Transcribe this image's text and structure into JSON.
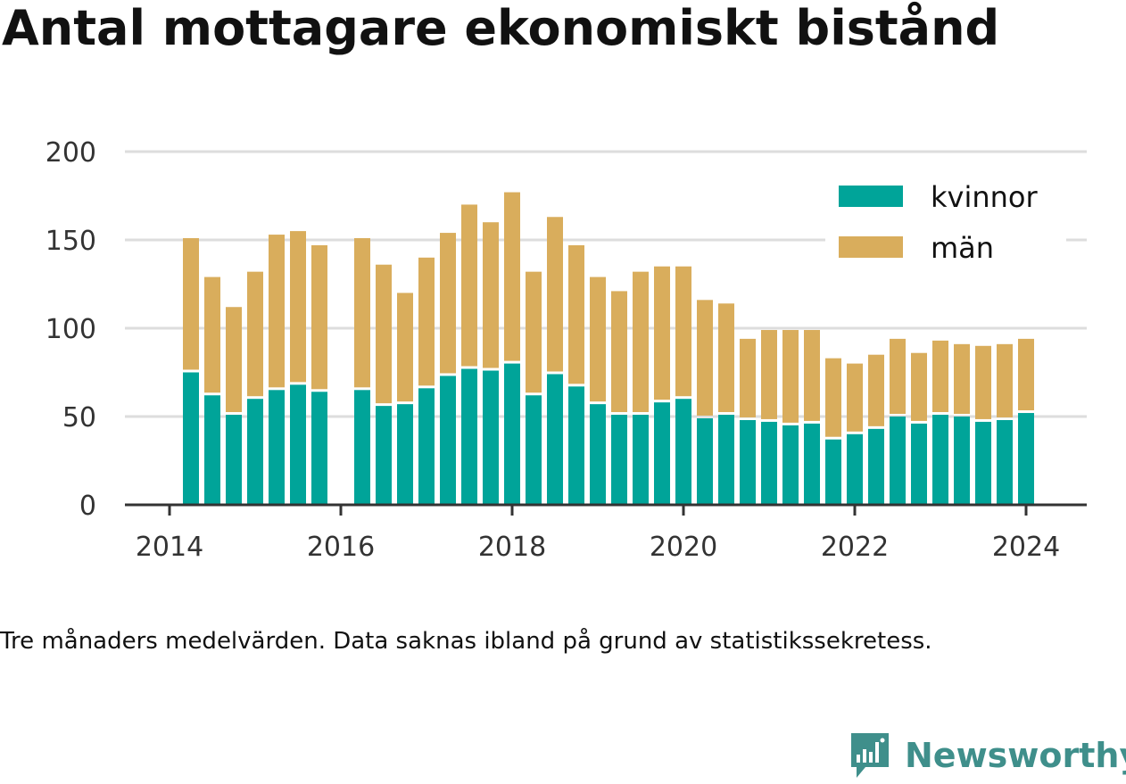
{
  "title": "Antal mottagare ekonomiskt bistånd",
  "note": "Tre månaders medelvärden. Data saknas ibland på grund av statistikssekretess.",
  "brand": "Newsworthy",
  "colors": {
    "kvinnor": "#00a499",
    "man": "#d9ad5c",
    "grid": "#dddddd",
    "axis": "#333333",
    "brand": "#3f8f8b"
  },
  "chart_data": {
    "type": "bar",
    "stacked": true,
    "xlabel": "",
    "ylabel": "",
    "ylim": [
      0,
      200
    ],
    "yticks": [
      0,
      50,
      100,
      150,
      200
    ],
    "xticks": [
      2014,
      2016,
      2018,
      2020,
      2022,
      2024
    ],
    "xlim": [
      2013.75,
      2024.3
    ],
    "legend": {
      "position": "top-right",
      "entries": [
        "kvinnor",
        "män"
      ]
    },
    "x": [
      2014.25,
      2014.5,
      2014.75,
      2015.0,
      2015.25,
      2015.5,
      2015.75,
      2016.25,
      2016.5,
      2016.75,
      2017.0,
      2017.25,
      2017.5,
      2017.75,
      2018.0,
      2018.25,
      2018.5,
      2018.75,
      2019.0,
      2019.25,
      2019.5,
      2019.75,
      2020.0,
      2020.25,
      2020.5,
      2020.75,
      2021.0,
      2021.25,
      2021.5,
      2021.75,
      2022.0,
      2022.25,
      2022.5,
      2022.75,
      2023.0,
      2023.25,
      2023.5,
      2023.75,
      2024.0
    ],
    "series": [
      {
        "name": "kvinnor",
        "values": [
          75,
          62,
          51,
          60,
          65,
          68,
          64,
          65,
          56,
          57,
          66,
          73,
          77,
          76,
          80,
          62,
          74,
          67,
          57,
          51,
          51,
          58,
          60,
          49,
          51,
          48,
          47,
          45,
          46,
          37,
          40,
          43,
          50,
          46,
          51,
          50,
          47,
          48,
          52
        ]
      },
      {
        "name": "män",
        "values": [
          76,
          67,
          61,
          72,
          88,
          87,
          83,
          86,
          80,
          63,
          74,
          81,
          93,
          84,
          97,
          70,
          89,
          80,
          72,
          70,
          81,
          77,
          75,
          67,
          63,
          46,
          52,
          54,
          53,
          46,
          40,
          42,
          44,
          40,
          42,
          41,
          43,
          43,
          42
        ]
      }
    ]
  }
}
